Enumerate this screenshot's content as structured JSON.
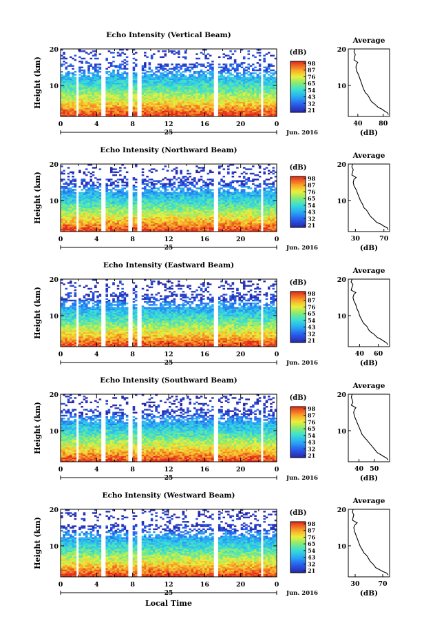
{
  "date_label": "Jun. 2016",
  "day_label": "25",
  "xlabel": "Local Time",
  "x_ticks": [
    "0",
    "4",
    "8",
    "12",
    "16",
    "20",
    "0"
  ],
  "ylabel": "Height (km)",
  "colorbar_unit": "(dB)",
  "average_title": "Average",
  "average_xlabel": "(dB)",
  "chart_data": [
    {
      "type": "heatmap",
      "title": "Echo Intensity (Vertical Beam)",
      "xlim": [
        0,
        24
      ],
      "ylim": [
        1.5,
        20
      ],
      "y_ticks": [
        10,
        20
      ],
      "colorbar_ticks": [
        "98",
        "87",
        "76",
        "65",
        "54",
        "43",
        "32",
        "21"
      ],
      "avg_profile": {
        "type": "line",
        "xlabel": "(dB)",
        "x_ticks": [
          40,
          80
        ],
        "xlim": [
          25,
          90
        ],
        "y_ticks": [
          10,
          20
        ],
        "x": [
          88,
          87,
          82,
          78,
          72,
          66,
          62,
          60,
          57,
          55,
          52,
          49,
          47,
          45,
          43,
          41,
          38,
          37,
          38,
          40,
          34,
          35,
          36,
          34,
          35
        ],
        "y": [
          2.0,
          2.5,
          3.0,
          3.5,
          4.0,
          5.0,
          5.5,
          6.0,
          7.0,
          7.5,
          8.0,
          9.0,
          10.0,
          11.0,
          12.0,
          13.0,
          14.0,
          15.0,
          15.8,
          16.3,
          17.0,
          17.8,
          18.5,
          19.2,
          20.0
        ]
      }
    },
    {
      "type": "heatmap",
      "title": "Echo Intensity (Northward Beam)",
      "xlim": [
        0,
        24
      ],
      "ylim": [
        1.5,
        20
      ],
      "y_ticks": [
        10,
        20
      ],
      "colorbar_ticks": [
        "98",
        "87",
        "76",
        "65",
        "54",
        "43",
        "32",
        "21"
      ],
      "avg_profile": {
        "type": "line",
        "xlabel": "(dB)",
        "x_ticks": [
          30,
          70
        ],
        "xlim": [
          20,
          78
        ],
        "y_ticks": [
          10,
          20
        ],
        "x": [
          76,
          75,
          70,
          66,
          60,
          55,
          52,
          50,
          47,
          45,
          42,
          40,
          37,
          35,
          33,
          31,
          28,
          27,
          28,
          31,
          25,
          26,
          27,
          25,
          26
        ],
        "y": [
          2.0,
          2.5,
          3.0,
          3.5,
          4.0,
          5.0,
          5.5,
          6.0,
          7.0,
          7.5,
          8.0,
          9.0,
          10.0,
          11.0,
          12.0,
          13.0,
          14.0,
          15.0,
          15.8,
          16.3,
          17.0,
          17.8,
          18.5,
          19.2,
          20.0
        ]
      }
    },
    {
      "type": "heatmap",
      "title": "Echo Intensity (Eastward Beam)",
      "xlim": [
        0,
        24
      ],
      "ylim": [
        1.5,
        20
      ],
      "y_ticks": [
        10,
        20
      ],
      "colorbar_ticks": [
        "98",
        "87",
        "76",
        "65",
        "54",
        "43",
        "32",
        "21"
      ],
      "avg_profile": {
        "type": "line",
        "xlabel": "(dB)",
        "x_ticks": [
          40,
          60
        ],
        "xlim": [
          28,
          72
        ],
        "y_ticks": [
          10,
          20
        ],
        "x": [
          70,
          69,
          66,
          63,
          59,
          55,
          52,
          50,
          48,
          46,
          44,
          42,
          40,
          39,
          37,
          36,
          34,
          33,
          34,
          36,
          31,
          32,
          33,
          31,
          32
        ],
        "y": [
          2.0,
          2.5,
          3.0,
          3.5,
          4.0,
          5.0,
          5.5,
          6.0,
          7.0,
          7.5,
          8.0,
          9.0,
          10.0,
          11.0,
          12.0,
          13.0,
          14.0,
          15.0,
          15.8,
          16.3,
          17.0,
          17.8,
          18.5,
          19.2,
          20.0
        ]
      }
    },
    {
      "type": "heatmap",
      "title": "Echo Intensity (Southward Beam)",
      "xlim": [
        0,
        24
      ],
      "ylim": [
        1.5,
        20
      ],
      "y_ticks": [
        10,
        20
      ],
      "colorbar_ticks": [
        "98",
        "87",
        "76",
        "65",
        "54",
        "43",
        "32",
        "21"
      ],
      "avg_profile": {
        "type": "line",
        "xlabel": "(dB)",
        "x_ticks": [
          40,
          50
        ],
        "xlim": [
          33,
          60
        ],
        "y_ticks": [
          10,
          20
        ],
        "x": [
          59,
          58,
          56,
          54,
          52,
          50,
          49,
          48,
          46,
          45,
          44,
          42,
          41,
          40,
          39,
          38,
          37,
          36.5,
          37,
          38,
          35,
          36,
          35.5,
          35,
          35.5
        ],
        "y": [
          2.0,
          2.5,
          3.0,
          3.5,
          4.0,
          5.0,
          5.5,
          6.0,
          7.0,
          7.5,
          8.0,
          9.0,
          10.0,
          11.0,
          12.0,
          13.0,
          14.0,
          15.0,
          15.8,
          16.3,
          17.0,
          17.8,
          18.5,
          19.2,
          20.0
        ]
      }
    },
    {
      "type": "heatmap",
      "title": "Echo Intensity (Westward Beam)",
      "xlim": [
        0,
        24
      ],
      "ylim": [
        1.5,
        20
      ],
      "y_ticks": [
        10,
        20
      ],
      "colorbar_ticks": [
        "98",
        "87",
        "76",
        "65",
        "54",
        "43",
        "32",
        "21"
      ],
      "avg_profile": {
        "type": "line",
        "xlabel": "(dB)",
        "x_ticks": [
          30,
          70
        ],
        "xlim": [
          20,
          80
        ],
        "y_ticks": [
          10,
          20
        ],
        "x": [
          78,
          76,
          70,
          65,
          60,
          56,
          53,
          51,
          48,
          46,
          43,
          40,
          37,
          35,
          33,
          31,
          29,
          28,
          30,
          33,
          26,
          27,
          28,
          26,
          27
        ],
        "y": [
          2.0,
          2.5,
          3.0,
          3.5,
          4.0,
          5.0,
          5.5,
          6.0,
          7.0,
          7.5,
          8.0,
          9.0,
          10.0,
          11.0,
          12.0,
          13.0,
          14.0,
          15.0,
          15.8,
          16.3,
          17.0,
          17.8,
          18.5,
          19.2,
          20.0
        ]
      }
    }
  ]
}
